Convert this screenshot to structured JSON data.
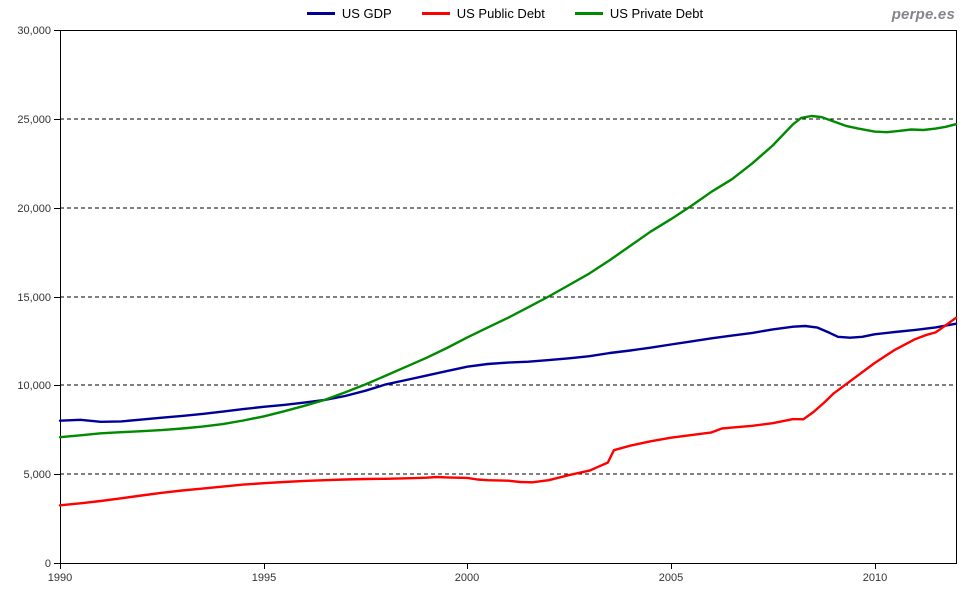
{
  "watermark": "perpe.es",
  "colors": {
    "axis_label": "#333333",
    "grid": "#000000",
    "border": "#000000",
    "legend_text": "#000000",
    "watermark": "#85858F",
    "background": "#ffffff"
  },
  "chart_data": {
    "type": "line",
    "title": "",
    "xlabel": "",
    "ylabel": "",
    "x_range": [
      1990,
      2012
    ],
    "y_range": [
      0,
      30000
    ],
    "grid": "horizontal-dashed",
    "legend_position": "top-center",
    "x_ticks": {
      "values": [
        1990,
        1995,
        2000,
        2005,
        2010
      ],
      "labels": [
        "1990",
        "1995",
        "2000",
        "2005",
        "2010"
      ]
    },
    "y_ticks": {
      "values": [
        0,
        5000,
        10000,
        15000,
        20000,
        25000,
        30000
      ],
      "labels": [
        "0",
        "5,000",
        "10,000",
        "15,000",
        "20,000",
        "25,000",
        "30,000"
      ]
    },
    "series": [
      {
        "name": "US GDP",
        "color": "#000099",
        "points": [
          [
            1990,
            8010
          ],
          [
            1990.5,
            8060
          ],
          [
            1991,
            7950
          ],
          [
            1991.5,
            7970
          ],
          [
            1992,
            8070
          ],
          [
            1992.5,
            8180
          ],
          [
            1993,
            8280
          ],
          [
            1993.5,
            8390
          ],
          [
            1994,
            8520
          ],
          [
            1994.5,
            8660
          ],
          [
            1995,
            8790
          ],
          [
            1995.5,
            8900
          ],
          [
            1996,
            9030
          ],
          [
            1996.5,
            9180
          ],
          [
            1997,
            9400
          ],
          [
            1997.5,
            9700
          ],
          [
            1998,
            10050
          ],
          [
            1998.5,
            10300
          ],
          [
            1999,
            10550
          ],
          [
            1999.5,
            10800
          ],
          [
            2000,
            11050
          ],
          [
            2000.5,
            11200
          ],
          [
            2001,
            11280
          ],
          [
            2001.5,
            11330
          ],
          [
            2002,
            11420
          ],
          [
            2002.5,
            11520
          ],
          [
            2003,
            11640
          ],
          [
            2003.5,
            11820
          ],
          [
            2004,
            11960
          ],
          [
            2004.5,
            12120
          ],
          [
            2005,
            12300
          ],
          [
            2005.5,
            12470
          ],
          [
            2006,
            12650
          ],
          [
            2006.5,
            12800
          ],
          [
            2007,
            12950
          ],
          [
            2007.5,
            13150
          ],
          [
            2008,
            13300
          ],
          [
            2008.3,
            13340
          ],
          [
            2008.6,
            13250
          ],
          [
            2008.9,
            12950
          ],
          [
            2009.1,
            12730
          ],
          [
            2009.4,
            12680
          ],
          [
            2009.7,
            12730
          ],
          [
            2010,
            12870
          ],
          [
            2010.5,
            13000
          ],
          [
            2011,
            13120
          ],
          [
            2011.5,
            13260
          ],
          [
            2011.75,
            13360
          ],
          [
            2012,
            13470
          ]
        ]
      },
      {
        "name": "US Public Debt",
        "color": "#FF0000",
        "points": [
          [
            1990,
            3250
          ],
          [
            1990.5,
            3360
          ],
          [
            1991,
            3490
          ],
          [
            1991.5,
            3640
          ],
          [
            1992,
            3800
          ],
          [
            1992.5,
            3950
          ],
          [
            1993,
            4080
          ],
          [
            1993.5,
            4190
          ],
          [
            1994,
            4300
          ],
          [
            1994.5,
            4410
          ],
          [
            1995,
            4490
          ],
          [
            1995.5,
            4560
          ],
          [
            1996,
            4620
          ],
          [
            1996.5,
            4660
          ],
          [
            1997,
            4700
          ],
          [
            1997.5,
            4730
          ],
          [
            1998,
            4740
          ],
          [
            1998.5,
            4770
          ],
          [
            1999,
            4800
          ],
          [
            1999.25,
            4840
          ],
          [
            1999.5,
            4820
          ],
          [
            2000,
            4790
          ],
          [
            2000.25,
            4700
          ],
          [
            2000.5,
            4660
          ],
          [
            2001,
            4630
          ],
          [
            2001.3,
            4560
          ],
          [
            2001.6,
            4540
          ],
          [
            2002,
            4660
          ],
          [
            2002.5,
            4950
          ],
          [
            2003,
            5200
          ],
          [
            2003.25,
            5450
          ],
          [
            2003.45,
            5650
          ],
          [
            2003.6,
            6350
          ],
          [
            2004,
            6600
          ],
          [
            2004.5,
            6850
          ],
          [
            2005,
            7050
          ],
          [
            2005.5,
            7200
          ],
          [
            2006,
            7350
          ],
          [
            2006.25,
            7570
          ],
          [
            2006.5,
            7620
          ],
          [
            2007,
            7720
          ],
          [
            2007.5,
            7870
          ],
          [
            2008,
            8100
          ],
          [
            2008.25,
            8090
          ],
          [
            2008.5,
            8500
          ],
          [
            2008.75,
            9000
          ],
          [
            2009,
            9550
          ],
          [
            2009.5,
            10400
          ],
          [
            2010,
            11250
          ],
          [
            2010.5,
            12000
          ],
          [
            2011,
            12600
          ],
          [
            2011.25,
            12820
          ],
          [
            2011.5,
            12980
          ],
          [
            2011.7,
            13300
          ],
          [
            2012,
            13800
          ]
        ]
      },
      {
        "name": "US Private Debt",
        "color": "#008A00",
        "points": [
          [
            1990,
            7080
          ],
          [
            1990.5,
            7190
          ],
          [
            1991,
            7300
          ],
          [
            1991.5,
            7360
          ],
          [
            1992,
            7420
          ],
          [
            1992.5,
            7480
          ],
          [
            1993,
            7570
          ],
          [
            1993.5,
            7680
          ],
          [
            1994,
            7820
          ],
          [
            1994.5,
            8020
          ],
          [
            1995,
            8250
          ],
          [
            1995.5,
            8540
          ],
          [
            1996,
            8850
          ],
          [
            1996.5,
            9180
          ],
          [
            1997,
            9600
          ],
          [
            1997.5,
            10050
          ],
          [
            1998,
            10550
          ],
          [
            1998.5,
            11050
          ],
          [
            1999,
            11550
          ],
          [
            1999.5,
            12100
          ],
          [
            2000,
            12700
          ],
          [
            2000.5,
            13250
          ],
          [
            2001,
            13800
          ],
          [
            2001.5,
            14400
          ],
          [
            2002,
            15000
          ],
          [
            2002.5,
            15650
          ],
          [
            2003,
            16300
          ],
          [
            2003.5,
            17050
          ],
          [
            2004,
            17850
          ],
          [
            2004.5,
            18650
          ],
          [
            2005,
            19350
          ],
          [
            2005.5,
            20100
          ],
          [
            2006,
            20900
          ],
          [
            2006.5,
            21600
          ],
          [
            2007,
            22500
          ],
          [
            2007.5,
            23500
          ],
          [
            2008,
            24700
          ],
          [
            2008.2,
            25050
          ],
          [
            2008.45,
            25160
          ],
          [
            2008.7,
            25100
          ],
          [
            2009,
            24850
          ],
          [
            2009.3,
            24600
          ],
          [
            2009.6,
            24450
          ],
          [
            2010,
            24280
          ],
          [
            2010.3,
            24250
          ],
          [
            2010.6,
            24320
          ],
          [
            2010.9,
            24400
          ],
          [
            2011.2,
            24370
          ],
          [
            2011.5,
            24450
          ],
          [
            2011.75,
            24550
          ],
          [
            2012,
            24700
          ]
        ]
      }
    ]
  }
}
